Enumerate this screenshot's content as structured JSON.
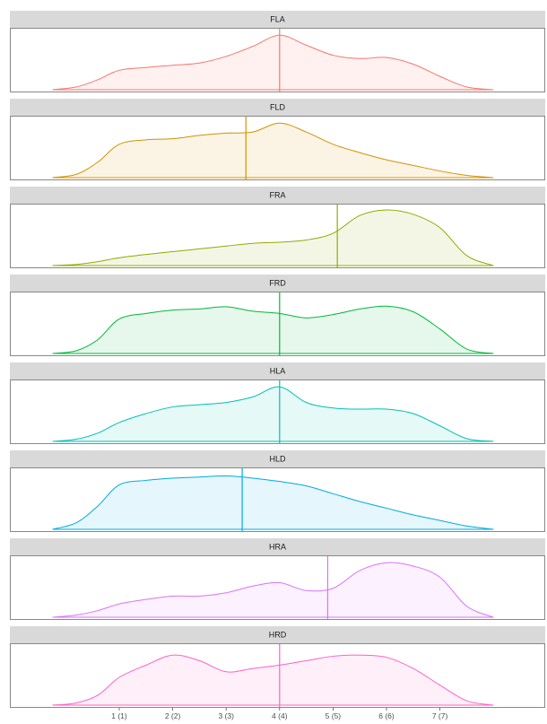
{
  "chart_data": {
    "type": "area",
    "x_ticks": [
      {
        "value": 1,
        "label": "1 (1)"
      },
      {
        "value": 2,
        "label": "2 (2)"
      },
      {
        "value": 3,
        "label": "3 (3)"
      },
      {
        "value": 4,
        "label": "4 (4)"
      },
      {
        "value": 5,
        "label": "5 (5)"
      },
      {
        "value": 6,
        "label": "6 (6)"
      },
      {
        "value": 7,
        "label": "7 (7)"
      }
    ],
    "xlim": [
      -0.4,
      8.3
    ],
    "x": [
      -0.25,
      0.2,
      0.6,
      1.0,
      1.5,
      2.0,
      2.5,
      3.0,
      3.5,
      4.0,
      4.5,
      5.0,
      5.5,
      6.0,
      6.5,
      7.0,
      7.5,
      8.0
    ],
    "panels": [
      {
        "name": "FLA",
        "color": "#F8766D",
        "mean": 4.0,
        "density": [
          0.0,
          0.05,
          0.18,
          0.35,
          0.4,
          0.44,
          0.48,
          0.6,
          0.78,
          0.98,
          0.8,
          0.62,
          0.56,
          0.58,
          0.46,
          0.24,
          0.05,
          0.0
        ]
      },
      {
        "name": "FLD",
        "color": "#D39200",
        "mean": 3.37,
        "density": [
          0.0,
          0.06,
          0.28,
          0.6,
          0.68,
          0.7,
          0.76,
          0.8,
          0.82,
          0.98,
          0.82,
          0.6,
          0.45,
          0.32,
          0.22,
          0.12,
          0.04,
          0.0
        ]
      },
      {
        "name": "FRA",
        "color": "#93AA00",
        "mean": 5.08,
        "density": [
          0.0,
          0.02,
          0.07,
          0.14,
          0.2,
          0.25,
          0.3,
          0.35,
          0.4,
          0.42,
          0.46,
          0.58,
          0.9,
          1.0,
          0.92,
          0.68,
          0.18,
          0.0
        ]
      },
      {
        "name": "FRD",
        "color": "#00BA38",
        "mean": 4.0,
        "density": [
          0.0,
          0.05,
          0.25,
          0.62,
          0.72,
          0.78,
          0.8,
          0.84,
          0.76,
          0.72,
          0.64,
          0.7,
          0.8,
          0.85,
          0.75,
          0.44,
          0.08,
          0.0
        ]
      },
      {
        "name": "HLA",
        "color": "#00C1B3",
        "mean": 4.0,
        "density": [
          0.0,
          0.04,
          0.15,
          0.34,
          0.5,
          0.62,
          0.66,
          0.7,
          0.8,
          0.98,
          0.7,
          0.6,
          0.58,
          0.58,
          0.5,
          0.28,
          0.05,
          0.0
        ]
      },
      {
        "name": "HLD",
        "color": "#00A9E6",
        "mean": 3.3,
        "density": [
          0.0,
          0.12,
          0.42,
          0.8,
          0.88,
          0.92,
          0.94,
          0.96,
          0.92,
          0.86,
          0.78,
          0.64,
          0.5,
          0.38,
          0.26,
          0.16,
          0.06,
          0.0
        ]
      },
      {
        "name": "HRA",
        "color": "#DB72FB",
        "mean": 4.9,
        "density": [
          0.0,
          0.04,
          0.12,
          0.24,
          0.32,
          0.38,
          0.38,
          0.44,
          0.56,
          0.62,
          0.48,
          0.52,
          0.84,
          0.98,
          0.92,
          0.72,
          0.2,
          0.0
        ]
      },
      {
        "name": "HRD",
        "color": "#FF61C3",
        "mean": 4.0,
        "density": [
          0.0,
          0.04,
          0.18,
          0.5,
          0.72,
          0.9,
          0.8,
          0.6,
          0.66,
          0.72,
          0.8,
          0.88,
          0.9,
          0.86,
          0.66,
          0.36,
          0.08,
          0.0
        ]
      }
    ]
  }
}
